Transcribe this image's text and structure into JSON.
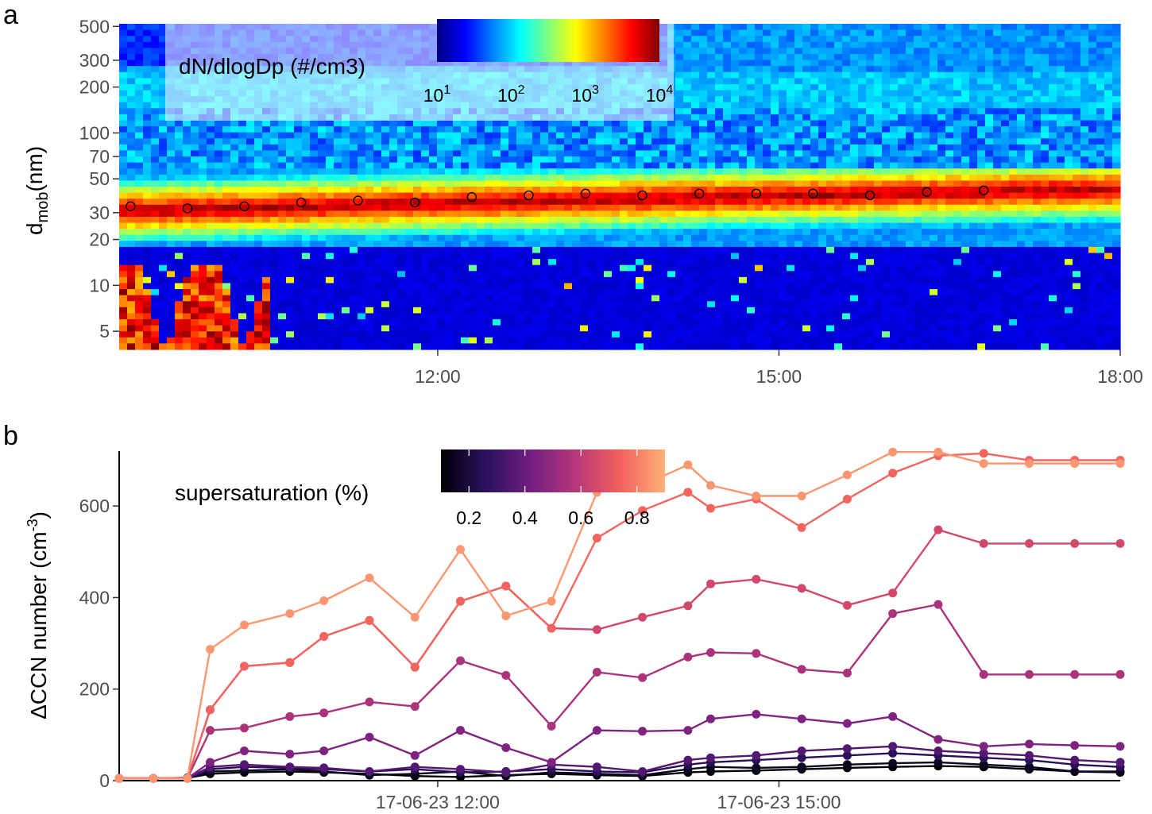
{
  "colors": {
    "jet": [
      "#00007f",
      "#0000ff",
      "#007fff",
      "#00ffff",
      "#7fff7f",
      "#ffff00",
      "#ff7f00",
      "#ff0000",
      "#7f0000"
    ],
    "magma": [
      "#000004",
      "#2c115f",
      "#721f81",
      "#b73779",
      "#f1605d",
      "#feb078"
    ]
  },
  "chart_data": [
    {
      "panel": "a",
      "type": "heatmap",
      "ylabel": "d",
      "ylabel_sub": "mob",
      "ylabel_suffix": "(nm)",
      "yscale": "log",
      "ylim": [
        3.8,
        520
      ],
      "y_ticks": [
        5,
        10,
        20,
        30,
        50,
        70,
        100,
        200,
        300,
        500
      ],
      "x_range_hours": [
        9.2,
        18.0
      ],
      "x_ticks": [
        {
          "hour": 12,
          "label": "12:00"
        },
        {
          "hour": 15,
          "label": "15:00"
        },
        {
          "hour": 18,
          "label": "18:00"
        }
      ],
      "legend": {
        "title": "dN/dlogDp (#/cm3)",
        "scale": "log",
        "range_exponents": [
          1,
          4
        ],
        "tick_base": "10",
        "tick_exponents": [
          "1",
          "2",
          "3",
          "4"
        ]
      },
      "mode_diameter_points": [
        {
          "hour": 9.3,
          "d": 33
        },
        {
          "hour": 9.8,
          "d": 32
        },
        {
          "hour": 10.3,
          "d": 33
        },
        {
          "hour": 10.8,
          "d": 35
        },
        {
          "hour": 11.3,
          "d": 36
        },
        {
          "hour": 11.8,
          "d": 35
        },
        {
          "hour": 12.3,
          "d": 38
        },
        {
          "hour": 12.8,
          "d": 39
        },
        {
          "hour": 13.3,
          "d": 40
        },
        {
          "hour": 13.8,
          "d": 39
        },
        {
          "hour": 14.3,
          "d": 40
        },
        {
          "hour": 14.8,
          "d": 40
        },
        {
          "hour": 15.3,
          "d": 40
        },
        {
          "hour": 15.8,
          "d": 39
        },
        {
          "hour": 16.3,
          "d": 41
        },
        {
          "hour": 16.8,
          "d": 42
        }
      ]
    },
    {
      "panel": "b",
      "type": "line",
      "ylabel": "ΔCCN number (cm",
      "ylabel_sup": "-3",
      "ylabel_close": ")",
      "ylim": [
        0,
        720
      ],
      "y_ticks": [
        0,
        200,
        400,
        600
      ],
      "x_range_hours": [
        9.2,
        18.0
      ],
      "x_ticks": [
        {
          "hour": 12,
          "label": "17-06-23 12:00"
        },
        {
          "hour": 15,
          "label": "17-06-23 15:00"
        }
      ],
      "legend": {
        "title": "supersaturation (%)",
        "range": [
          0.1,
          0.9
        ],
        "tick_labels": [
          "0.2",
          "0.4",
          "0.6",
          "0.8"
        ]
      },
      "x": [
        9.2,
        9.5,
        9.8,
        10.0,
        10.3,
        10.7,
        11.0,
        11.4,
        11.8,
        12.2,
        12.6,
        13.0,
        13.4,
        13.8,
        14.2,
        14.4,
        14.8,
        15.2,
        15.6,
        16.0,
        16.4,
        16.8,
        17.2,
        17.6,
        18.0
      ],
      "series": [
        {
          "ss": 0.1,
          "values": [
            5,
            5,
            6,
            15,
            18,
            20,
            18,
            15,
            10,
            8,
            12,
            15,
            12,
            10,
            18,
            20,
            22,
            25,
            28,
            30,
            32,
            30,
            25,
            20,
            18
          ]
        },
        {
          "ss": 0.15,
          "values": [
            5,
            5,
            6,
            20,
            22,
            25,
            20,
            12,
            15,
            20,
            10,
            18,
            15,
            12,
            25,
            30,
            28,
            30,
            35,
            38,
            40,
            35,
            30,
            20,
            20
          ]
        },
        {
          "ss": 0.25,
          "values": [
            5,
            5,
            5,
            25,
            30,
            28,
            25,
            20,
            25,
            18,
            20,
            25,
            20,
            18,
            35,
            40,
            45,
            50,
            55,
            60,
            55,
            50,
            45,
            35,
            30
          ]
        },
        {
          "ss": 0.35,
          "values": [
            5,
            5,
            5,
            30,
            35,
            30,
            28,
            20,
            30,
            25,
            18,
            35,
            30,
            20,
            45,
            50,
            55,
            65,
            70,
            75,
            65,
            60,
            55,
            45,
            40
          ]
        },
        {
          "ss": 0.45,
          "values": [
            5,
            5,
            5,
            40,
            65,
            58,
            65,
            95,
            55,
            110,
            72,
            40,
            110,
            108,
            110,
            135,
            145,
            135,
            125,
            140,
            90,
            75,
            80,
            77,
            75
          ]
        },
        {
          "ss": 0.55,
          "values": [
            5,
            5,
            5,
            110,
            115,
            140,
            148,
            172,
            162,
            262,
            230,
            119,
            237,
            225,
            270,
            280,
            278,
            243,
            235,
            365,
            385,
            232,
            232,
            232,
            232
          ]
        },
        {
          "ss": 0.65,
          "values": [
            5,
            5,
            5,
            155,
            250,
            258,
            315,
            350,
            248,
            392,
            425,
            333,
            330,
            357,
            382,
            430,
            440,
            420,
            383,
            410,
            548,
            518,
            518,
            518,
            518
          ]
        },
        {
          "ss": 0.75,
          "values": [
            5,
            5,
            5,
            155,
            250,
            258,
            315,
            350,
            248,
            392,
            425,
            333,
            530,
            590,
            630,
            595,
            615,
            553,
            615,
            672,
            710,
            715,
            700,
            700,
            700
          ]
        },
        {
          "ss": 0.85,
          "values": [
            5,
            5,
            5,
            287,
            340,
            365,
            393,
            443,
            357,
            505,
            360,
            392,
            630,
            645,
            690,
            645,
            622,
            622,
            668,
            718,
            718,
            693,
            693,
            693,
            693
          ]
        }
      ]
    }
  ]
}
